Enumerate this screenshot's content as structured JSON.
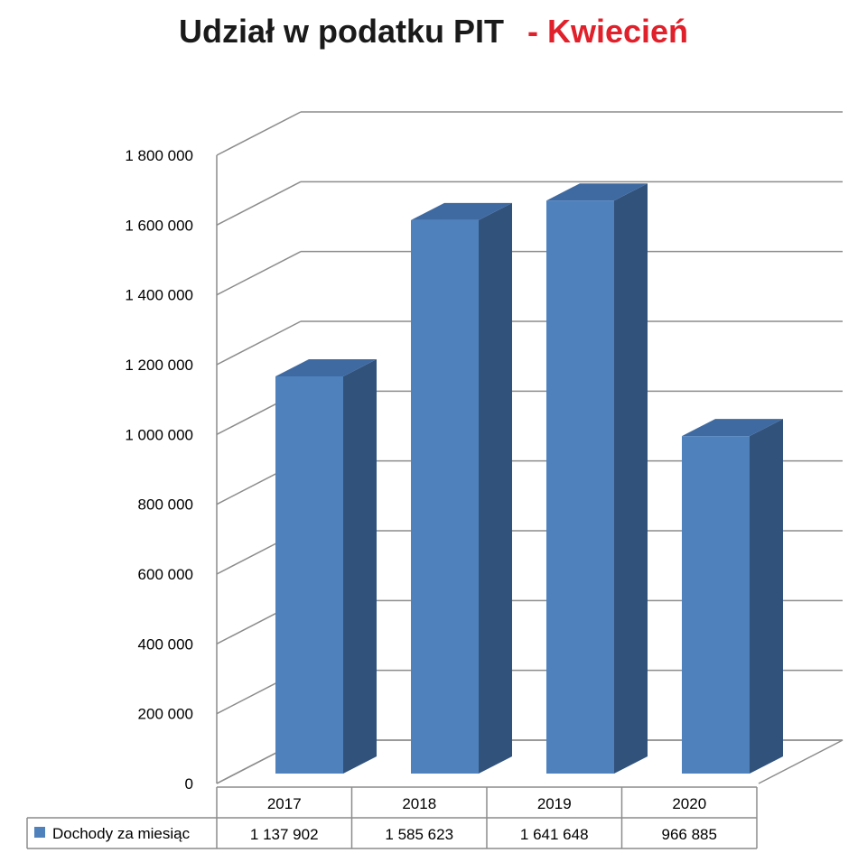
{
  "colors": {
    "bar_front": "#4f81bd",
    "bar_side": "#31527b",
    "bar_top": "#3f6aa1",
    "grid": "#8c8c8c",
    "subtitle": "#e0202a"
  },
  "chart_data": {
    "type": "bar",
    "title": "Udział w podatku PIT",
    "subtitle": "- Kwiecień",
    "categories": [
      "2017",
      "2018",
      "2019",
      "2020"
    ],
    "series": [
      {
        "name": "Dochody za miesiąc",
        "values": [
          1137902,
          1585623,
          1641648,
          966885
        ]
      }
    ],
    "value_labels": [
      "1 137 902",
      "1 585 623",
      "1 641 648",
      "966 885"
    ],
    "ylim": [
      0,
      1800000
    ],
    "yticks": [
      0,
      200000,
      400000,
      600000,
      800000,
      1000000,
      1200000,
      1400000,
      1600000,
      1800000
    ],
    "ytick_labels": [
      "0",
      "200 000",
      "400 000",
      "600 000",
      "800 000",
      "1 000 000",
      "1 200 000",
      "1 400 000",
      "1 600 000",
      "1 800 000"
    ],
    "grid": true,
    "style": "3d",
    "legend": "data-table"
  }
}
